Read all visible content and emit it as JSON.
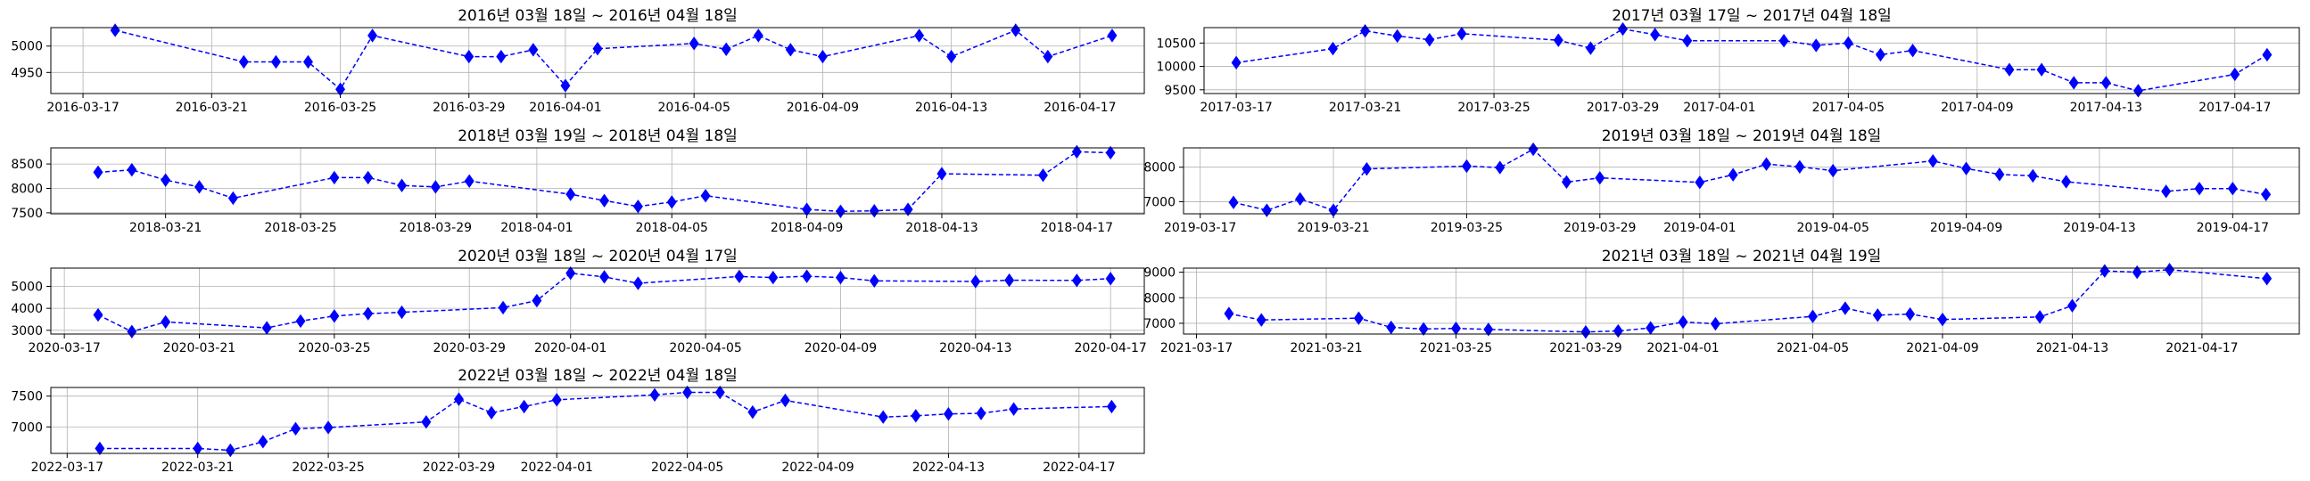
{
  "colors": {
    "series": "#0000ff",
    "grid": "#b0b0b0"
  },
  "chart_data": [
    {
      "type": "line",
      "title": "2016년 03월 18일 ~ 2016년 04월 18일",
      "marker": "diamond",
      "line_style": "dashed",
      "grid": true,
      "xlim": [
        "2016-03-16",
        "2016-04-19"
      ],
      "ylim": [
        4910,
        5035
      ],
      "x_ticks": [
        "2016-03-17",
        "2016-03-21",
        "2016-03-25",
        "2016-03-29",
        "2016-04-01",
        "2016-04-05",
        "2016-04-09",
        "2016-04-13",
        "2016-04-17"
      ],
      "y_ticks": [
        4950,
        5000
      ],
      "x": [
        "2016-03-18",
        "2016-03-22",
        "2016-03-23",
        "2016-03-24",
        "2016-03-25",
        "2016-03-26",
        "2016-03-29",
        "2016-03-30",
        "2016-03-31",
        "2016-04-01",
        "2016-04-02",
        "2016-04-05",
        "2016-04-06",
        "2016-04-07",
        "2016-04-08",
        "2016-04-09",
        "2016-04-12",
        "2016-04-13",
        "2016-04-15",
        "2016-04-16",
        "2016-04-18"
      ],
      "y": [
        5030,
        4970,
        4970,
        4970,
        4918,
        5020,
        4980,
        4980,
        4993,
        4925,
        4995,
        5005,
        4994,
        5020,
        4993,
        4980,
        5020,
        4980,
        5030,
        4980,
        5020
      ]
    },
    {
      "type": "line",
      "title": "2017년 03월 17일 ~ 2017년 04월 18일",
      "marker": "diamond",
      "line_style": "dashed",
      "grid": true,
      "xlim": [
        "2017-03-16",
        "2017-04-19"
      ],
      "ylim": [
        9420,
        10830
      ],
      "x_ticks": [
        "2017-03-17",
        "2017-03-21",
        "2017-03-25",
        "2017-03-29",
        "2017-04-01",
        "2017-04-05",
        "2017-04-09",
        "2017-04-13",
        "2017-04-17"
      ],
      "y_ticks": [
        9500,
        10000,
        10500
      ],
      "x": [
        "2017-03-17",
        "2017-03-20",
        "2017-03-21",
        "2017-03-22",
        "2017-03-23",
        "2017-03-24",
        "2017-03-27",
        "2017-03-28",
        "2017-03-29",
        "2017-03-30",
        "2017-03-31",
        "2017-04-03",
        "2017-04-04",
        "2017-04-05",
        "2017-04-06",
        "2017-04-07",
        "2017-04-10",
        "2017-04-11",
        "2017-04-12",
        "2017-04-13",
        "2017-04-14",
        "2017-04-17",
        "2017-04-18"
      ],
      "y": [
        10080,
        10380,
        10760,
        10650,
        10570,
        10700,
        10560,
        10390,
        10800,
        10680,
        10550,
        10550,
        10450,
        10500,
        10250,
        10340,
        9930,
        9930,
        9650,
        9650,
        9480,
        9830,
        10250
      ]
    },
    {
      "type": "line",
      "title": "2018년 03월 19일 ~ 2018년 04월 18일",
      "marker": "diamond",
      "line_style": "dashed",
      "grid": true,
      "xlim": [
        "2018-03-17.6",
        "2018-04-19"
      ],
      "ylim": [
        7480,
        8830
      ],
      "x_ticks": [
        "2018-03-21",
        "2018-03-25",
        "2018-03-29",
        "2018-04-01",
        "2018-04-05",
        "2018-04-09",
        "2018-04-13",
        "2018-04-17"
      ],
      "y_ticks": [
        7500,
        8000,
        8500
      ],
      "x": [
        "2018-03-19",
        "2018-03-20",
        "2018-03-21",
        "2018-03-22",
        "2018-03-23",
        "2018-03-26",
        "2018-03-27",
        "2018-03-28",
        "2018-03-29",
        "2018-03-30",
        "2018-04-02",
        "2018-04-03",
        "2018-04-04",
        "2018-04-05",
        "2018-04-06",
        "2018-04-09",
        "2018-04-10",
        "2018-04-11",
        "2018-04-12",
        "2018-04-13",
        "2018-04-16",
        "2018-04-17",
        "2018-04-18"
      ],
      "y": [
        8330,
        8380,
        8170,
        8030,
        7800,
        8220,
        8220,
        8060,
        8030,
        8150,
        7880,
        7750,
        7630,
        7720,
        7850,
        7570,
        7530,
        7540,
        7570,
        8300,
        8270,
        8750,
        8730
      ]
    },
    {
      "type": "line",
      "title": "2019년 03월 18일 ~ 2019년 04월 18일",
      "marker": "diamond",
      "line_style": "dashed",
      "grid": true,
      "xlim": [
        "2019-03-16.5",
        "2019-04-19"
      ],
      "ylim": [
        6650,
        8560
      ],
      "x_ticks": [
        "2019-03-17",
        "2019-03-21",
        "2019-03-25",
        "2019-03-29",
        "2019-04-01",
        "2019-04-05",
        "2019-04-09",
        "2019-04-13",
        "2019-04-17"
      ],
      "y_ticks": [
        7000,
        8000
      ],
      "x": [
        "2019-03-18",
        "2019-03-19",
        "2019-03-20",
        "2019-03-21",
        "2019-03-22",
        "2019-03-25",
        "2019-03-26",
        "2019-03-27",
        "2019-03-28",
        "2019-03-29",
        "2019-04-01",
        "2019-04-02",
        "2019-04-03",
        "2019-04-04",
        "2019-04-05",
        "2019-04-08",
        "2019-04-09",
        "2019-04-10",
        "2019-04-11",
        "2019-04-12",
        "2019-04-15",
        "2019-04-16",
        "2019-04-17",
        "2019-04-18"
      ],
      "y": [
        6980,
        6750,
        7080,
        6750,
        7950,
        8030,
        7990,
        8520,
        7570,
        7690,
        7560,
        7780,
        8090,
        8010,
        7900,
        8180,
        7960,
        7790,
        7750,
        7580,
        7300,
        7380,
        7380,
        7210
      ]
    },
    {
      "type": "line",
      "title": "2020년 03월 18일 ~ 2020년 04월 17일",
      "marker": "diamond",
      "line_style": "dashed",
      "grid": true,
      "xlim": [
        "2020-03-16.6",
        "2020-04-18"
      ],
      "ylim": [
        2830,
        5830
      ],
      "x_ticks": [
        "2020-03-17",
        "2020-03-21",
        "2020-03-25",
        "2020-03-29",
        "2020-04-01",
        "2020-04-05",
        "2020-04-09",
        "2020-04-13",
        "2020-04-17"
      ],
      "y_ticks": [
        3000,
        4000,
        5000
      ],
      "x": [
        "2020-03-18",
        "2020-03-19",
        "2020-03-20",
        "2020-03-23",
        "2020-03-24",
        "2020-03-25",
        "2020-03-26",
        "2020-03-27",
        "2020-03-30",
        "2020-03-31",
        "2020-04-01",
        "2020-04-02",
        "2020-04-03",
        "2020-04-06",
        "2020-04-07",
        "2020-04-08",
        "2020-04-09",
        "2020-04-10",
        "2020-04-13",
        "2020-04-14",
        "2020-04-16",
        "2020-04-17"
      ],
      "y": [
        3700,
        2940,
        3380,
        3110,
        3420,
        3650,
        3760,
        3820,
        4030,
        4350,
        5600,
        5430,
        5140,
        5450,
        5400,
        5460,
        5400,
        5250,
        5220,
        5280,
        5270,
        5350
      ]
    },
    {
      "type": "line",
      "title": "2021년 03월 18일 ~ 2021년 04월 19일",
      "marker": "diamond",
      "line_style": "dashed",
      "grid": true,
      "xlim": [
        "2021-03-16.6",
        "2021-04-20"
      ],
      "ylim": [
        6580,
        9160
      ],
      "x_ticks": [
        "2021-03-17",
        "2021-03-21",
        "2021-03-25",
        "2021-03-29",
        "2021-04-01",
        "2021-04-05",
        "2021-04-09",
        "2021-04-13",
        "2021-04-17"
      ],
      "y_ticks": [
        7000,
        8000,
        9000
      ],
      "x": [
        "2021-03-18",
        "2021-03-19",
        "2021-03-22",
        "2021-03-23",
        "2021-03-24",
        "2021-03-25",
        "2021-03-26",
        "2021-03-29",
        "2021-03-30",
        "2021-03-31",
        "2021-04-01",
        "2021-04-02",
        "2021-04-05",
        "2021-04-06",
        "2021-04-07",
        "2021-04-08",
        "2021-04-09",
        "2021-04-12",
        "2021-04-13",
        "2021-04-14",
        "2021-04-15",
        "2021-04-16",
        "2021-04-19"
      ],
      "y": [
        7380,
        7130,
        7200,
        6840,
        6780,
        6800,
        6760,
        6660,
        6700,
        6820,
        7050,
        6980,
        7270,
        7590,
        7320,
        7360,
        7150,
        7250,
        7690,
        9050,
        9000,
        9100,
        8750
      ]
    },
    {
      "type": "line",
      "title": "2022년 03월 18일 ~ 2022년 04월 18일",
      "marker": "diamond",
      "line_style": "dashed",
      "grid": true,
      "xlim": [
        "2022-03-16.5",
        "2022-04-19"
      ],
      "ylim": [
        6570,
        7640
      ],
      "x_ticks": [
        "2022-03-17",
        "2022-03-21",
        "2022-03-25",
        "2022-03-29",
        "2022-04-01",
        "2022-04-05",
        "2022-04-09",
        "2022-04-13",
        "2022-04-17"
      ],
      "y_ticks": [
        7000,
        7500
      ],
      "x": [
        "2022-03-18",
        "2022-03-21",
        "2022-03-22",
        "2022-03-23",
        "2022-03-24",
        "2022-03-25",
        "2022-03-28",
        "2022-03-29",
        "2022-03-30",
        "2022-03-31",
        "2022-04-01",
        "2022-04-04",
        "2022-04-05",
        "2022-04-06",
        "2022-04-07",
        "2022-04-08",
        "2022-04-11",
        "2022-04-12",
        "2022-04-13",
        "2022-04-14",
        "2022-04-15",
        "2022-04-18"
      ],
      "y": [
        6650,
        6650,
        6620,
        6760,
        6970,
        6990,
        7080,
        7450,
        7230,
        7330,
        7440,
        7520,
        7560,
        7560,
        7240,
        7430,
        7160,
        7180,
        7210,
        7220,
        7290,
        7330
      ]
    }
  ]
}
